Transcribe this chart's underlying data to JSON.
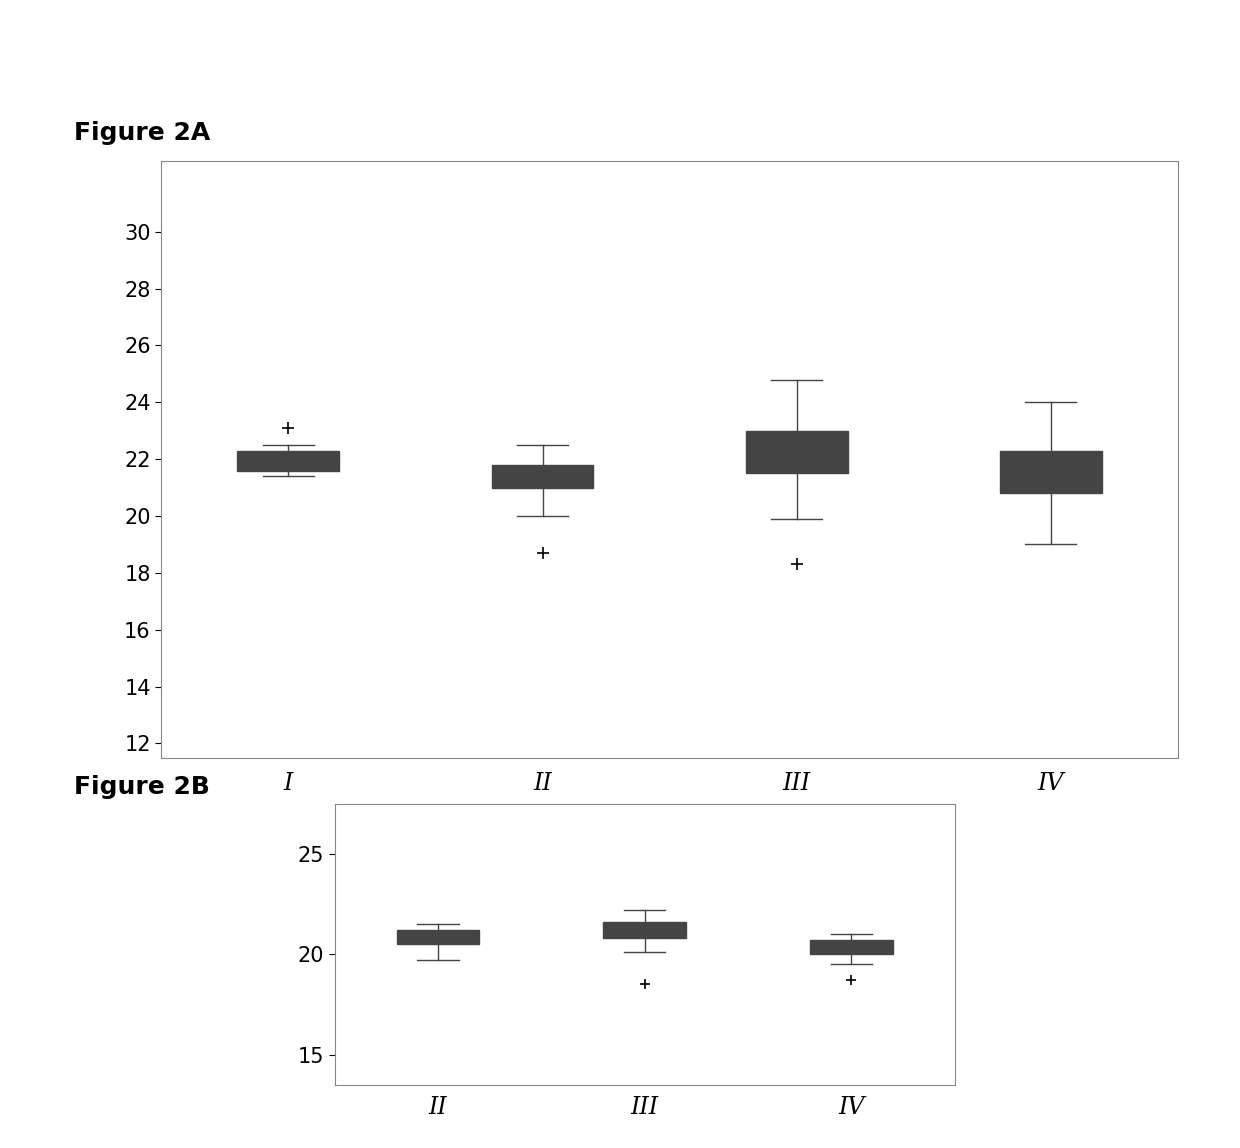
{
  "fig2a": {
    "title": "Figure 2A",
    "categories": [
      "I",
      "II",
      "III",
      "IV"
    ],
    "boxes": [
      {
        "q1": 21.6,
        "median": 22.0,
        "q3": 22.3,
        "whisker_low": 21.4,
        "whisker_high": 22.5,
        "fliers": [
          23.1
        ]
      },
      {
        "q1": 21.0,
        "median": 21.3,
        "q3": 21.8,
        "whisker_low": 20.0,
        "whisker_high": 22.5,
        "fliers": [
          18.7
        ]
      },
      {
        "q1": 21.5,
        "median": 22.2,
        "q3": 23.0,
        "whisker_low": 19.9,
        "whisker_high": 24.8,
        "fliers": [
          18.3
        ]
      },
      {
        "q1": 20.8,
        "median": 21.5,
        "q3": 22.3,
        "whisker_low": 19.0,
        "whisker_high": 24.0,
        "fliers": []
      }
    ],
    "ylim": [
      11.5,
      32.5
    ],
    "yticks": [
      12,
      14,
      16,
      18,
      20,
      22,
      24,
      26,
      28,
      30
    ]
  },
  "fig2b": {
    "title": "Figure 2B",
    "categories": [
      "II",
      "III",
      "IV"
    ],
    "boxes": [
      {
        "q1": 20.5,
        "median": 20.9,
        "q3": 21.2,
        "whisker_low": 19.7,
        "whisker_high": 21.5,
        "fliers": []
      },
      {
        "q1": 20.8,
        "median": 21.2,
        "q3": 21.6,
        "whisker_low": 20.1,
        "whisker_high": 22.2,
        "fliers": [
          18.5
        ]
      },
      {
        "q1": 20.0,
        "median": 20.3,
        "q3": 20.7,
        "whisker_low": 19.5,
        "whisker_high": 21.0,
        "fliers": [
          18.7
        ]
      }
    ],
    "ylim": [
      13.5,
      27.5
    ],
    "yticks": [
      15,
      20,
      25
    ]
  },
  "box_facecolor": "#e8e8e8",
  "box_edgecolor": "#444444",
  "median_color": "#444444",
  "whisker_color": "#444444",
  "flier_color": "#444444",
  "background_color": "#ffffff",
  "fig_label_fontsize": 18,
  "tick_fontsize": 15,
  "label_fontsize": 17
}
